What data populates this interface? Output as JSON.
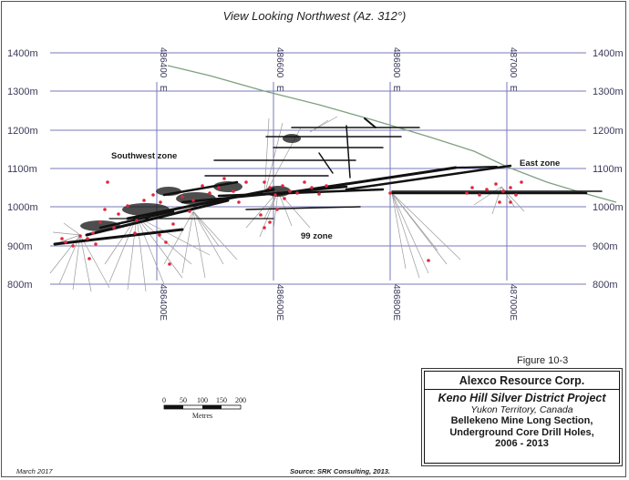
{
  "view_title": "View Looking Northwest (Az. 312°)",
  "elevation_labels": [
    "1400m",
    "1300m",
    "1200m",
    "1100m",
    "1000m",
    "900m",
    "800m"
  ],
  "easting_labels": [
    "486400 E",
    "486600 E",
    "486800 E",
    "487000 E"
  ],
  "zones": {
    "southwest": "Southwest zone",
    "ninety_nine": "99 zone",
    "east": "East zone"
  },
  "scale_bar": {
    "ticks": [
      "0",
      "50",
      "100",
      "150",
      "200"
    ],
    "unit": "Metres"
  },
  "figure_label": "Figure 10-3",
  "title_block": {
    "company": "Alexco Resource Corp.",
    "project": "Keno Hill Silver District Project",
    "location": "Yukon Territory, Canada",
    "subject_lines": [
      "Bellekeno Mine Long Section,",
      "Underground Core Drill Holes,",
      "2006 - 2013"
    ]
  },
  "footer": {
    "date": "March 2017",
    "source": "Source: SRK Consulting, 2013."
  },
  "colors": {
    "grid": "#7a7ab8",
    "topography": "#7fa07f",
    "workings": "#111111",
    "drill_holes": "#9a9a9a",
    "intercepts": "#e0283c"
  }
}
